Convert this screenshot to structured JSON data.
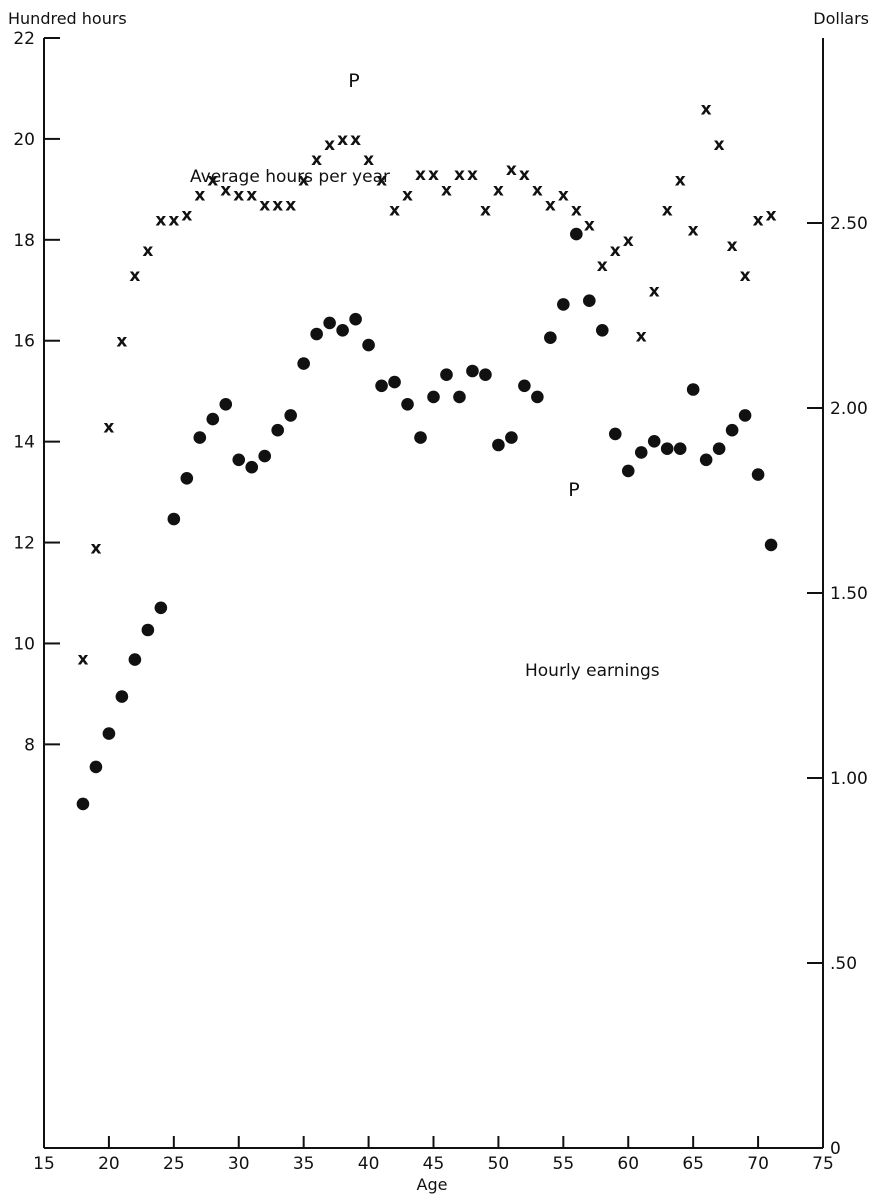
{
  "chart_data": {
    "type": "scatter",
    "xlabel": "Age",
    "left_axis_label": "Hundred hours",
    "right_axis_label": "Dollars",
    "x_range": [
      15,
      75
    ],
    "x_ticks": [
      "15",
      "20",
      "25",
      "30",
      "35",
      "40",
      "45",
      "50",
      "55",
      "60",
      "65",
      "70",
      "75"
    ],
    "left_ylim": [
      0,
      22
    ],
    "left_ticks": [
      "8",
      "10",
      "12",
      "14",
      "16",
      "18",
      "20",
      "22"
    ],
    "right_ylim": [
      0,
      3.0
    ],
    "right_ticks": [
      "0",
      ".50",
      "1.00",
      "1.50",
      "2.00",
      "2.50"
    ],
    "grid": false,
    "series": [
      {
        "name": "Average hours per year",
        "axis": "left",
        "marker": "x",
        "points": [
          [
            18,
            9.7
          ],
          [
            19,
            11.9
          ],
          [
            20,
            14.3
          ],
          [
            21,
            16.0
          ],
          [
            22,
            17.3
          ],
          [
            23,
            17.8
          ],
          [
            24,
            18.4
          ],
          [
            25,
            18.4
          ],
          [
            26,
            18.5
          ],
          [
            27,
            18.9
          ],
          [
            28,
            19.2
          ],
          [
            29,
            19.0
          ],
          [
            30,
            18.9
          ],
          [
            31,
            18.9
          ],
          [
            32,
            18.7
          ],
          [
            33,
            18.7
          ],
          [
            34,
            18.7
          ],
          [
            35,
            19.2
          ],
          [
            36,
            19.6
          ],
          [
            37,
            19.9
          ],
          [
            38,
            20.0
          ],
          [
            39,
            20.0
          ],
          [
            40,
            19.6
          ],
          [
            41,
            19.2
          ],
          [
            42,
            18.6
          ],
          [
            43,
            18.9
          ],
          [
            44,
            19.3
          ],
          [
            45,
            19.3
          ],
          [
            46,
            19.0
          ],
          [
            47,
            19.3
          ],
          [
            48,
            19.3
          ],
          [
            49,
            18.6
          ],
          [
            50,
            19.0
          ],
          [
            51,
            19.4
          ],
          [
            52,
            19.3
          ],
          [
            53,
            19.0
          ],
          [
            54,
            18.7
          ],
          [
            55,
            18.9
          ],
          [
            56,
            18.6
          ],
          [
            57,
            18.3
          ],
          [
            58,
            17.5
          ],
          [
            59,
            17.8
          ],
          [
            60,
            18.0
          ],
          [
            61,
            16.1
          ],
          [
            62,
            17.0
          ],
          [
            63,
            18.6
          ],
          [
            64,
            19.2
          ],
          [
            65,
            18.2
          ],
          [
            66,
            20.6
          ],
          [
            67,
            19.9
          ],
          [
            68,
            17.9
          ],
          [
            69,
            17.3
          ],
          [
            70,
            18.4
          ],
          [
            71,
            18.5
          ]
        ]
      },
      {
        "name": "Hourly earnings",
        "axis": "right",
        "marker": "dot",
        "points": [
          [
            18,
            0.93
          ],
          [
            19,
            1.03
          ],
          [
            20,
            1.12
          ],
          [
            21,
            1.22
          ],
          [
            22,
            1.32
          ],
          [
            23,
            1.4
          ],
          [
            24,
            1.46
          ],
          [
            25,
            1.7
          ],
          [
            26,
            1.81
          ],
          [
            27,
            1.92
          ],
          [
            28,
            1.97
          ],
          [
            29,
            2.01
          ],
          [
            30,
            1.86
          ],
          [
            31,
            1.84
          ],
          [
            32,
            1.87
          ],
          [
            33,
            1.94
          ],
          [
            34,
            1.98
          ],
          [
            35,
            2.12
          ],
          [
            36,
            2.2
          ],
          [
            37,
            2.23
          ],
          [
            38,
            2.21
          ],
          [
            39,
            2.24
          ],
          [
            40,
            2.17
          ],
          [
            41,
            2.06
          ],
          [
            42,
            2.07
          ],
          [
            43,
            2.01
          ],
          [
            44,
            1.92
          ],
          [
            45,
            2.03
          ],
          [
            46,
            2.09
          ],
          [
            47,
            2.03
          ],
          [
            48,
            2.1
          ],
          [
            49,
            2.09
          ],
          [
            50,
            1.9
          ],
          [
            51,
            1.92
          ],
          [
            52,
            2.06
          ],
          [
            53,
            2.03
          ],
          [
            54,
            2.19
          ],
          [
            55,
            2.28
          ],
          [
            56,
            2.47
          ],
          [
            57,
            2.29
          ],
          [
            58,
            2.21
          ],
          [
            59,
            1.93
          ],
          [
            60,
            1.83
          ],
          [
            61,
            1.88
          ],
          [
            62,
            1.91
          ],
          [
            63,
            1.89
          ],
          [
            64,
            1.89
          ],
          [
            65,
            2.05
          ],
          [
            66,
            1.86
          ],
          [
            67,
            1.89
          ],
          [
            68,
            1.94
          ],
          [
            69,
            1.98
          ],
          [
            70,
            1.82
          ],
          [
            71,
            1.63
          ]
        ]
      }
    ],
    "annotations": [
      {
        "text": "P",
        "series": "Average hours per year",
        "x": 39,
        "y": 20.0
      },
      {
        "text": "P",
        "series": "Hourly earnings",
        "x": 56,
        "y": 2.47
      }
    ],
    "marker_glyph": "x"
  }
}
